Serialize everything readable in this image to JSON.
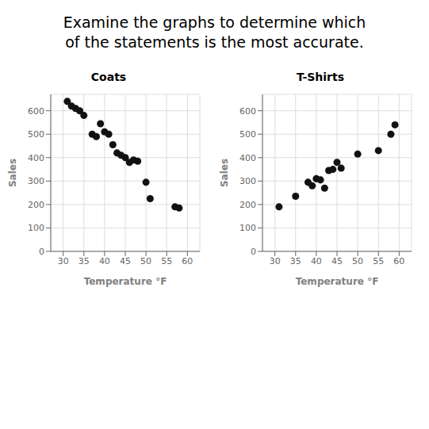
{
  "title": "Examine the graphs to determine which\nof the statements is the most accurate.",
  "chart_data": [
    {
      "type": "scatter",
      "title": "Coats",
      "xlabel": "Temperature °F",
      "ylabel": "Sales",
      "x": [
        31,
        32,
        33,
        34,
        35,
        37,
        38,
        39,
        40,
        41,
        42,
        43,
        44,
        45,
        46,
        47,
        48,
        50,
        51,
        57,
        58
      ],
      "values": [
        640,
        620,
        610,
        600,
        580,
        500,
        490,
        545,
        510,
        500,
        455,
        420,
        410,
        400,
        380,
        390,
        385,
        295,
        225,
        190,
        185
      ],
      "color": "#111111",
      "xlim": [
        27,
        63
      ],
      "ylim": [
        0,
        670
      ],
      "xticks": [
        30,
        35,
        40,
        45,
        50,
        55,
        60
      ],
      "yticks": [
        0,
        100,
        200,
        300,
        400,
        500,
        600
      ],
      "grid": true
    },
    {
      "type": "scatter",
      "title": "T-Shirts",
      "xlabel": "Temperature °F",
      "ylabel": "Sales",
      "x": [
        31,
        35,
        38,
        39,
        40,
        41,
        42,
        43,
        44,
        45,
        46,
        50,
        55,
        58,
        59
      ],
      "values": [
        190,
        235,
        295,
        280,
        310,
        305,
        270,
        345,
        350,
        380,
        355,
        415,
        430,
        500,
        540
      ],
      "color": "#111111",
      "xlim": [
        27,
        63
      ],
      "ylim": [
        0,
        670
      ],
      "xticks": [
        30,
        35,
        40,
        45,
        50,
        55,
        60
      ],
      "yticks": [
        0,
        100,
        200,
        300,
        400,
        500,
        600
      ],
      "grid": true
    }
  ]
}
